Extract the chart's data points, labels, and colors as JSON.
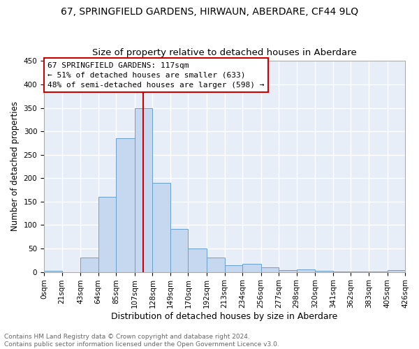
{
  "title": "67, SPRINGFIELD GARDENS, HIRWAUN, ABERDARE, CF44 9LQ",
  "subtitle": "Size of property relative to detached houses in Aberdare",
  "xlabel": "Distribution of detached houses by size in Aberdare",
  "ylabel": "Number of detached properties",
  "bin_edges": [
    0,
    21,
    43,
    64,
    85,
    107,
    128,
    149,
    170,
    192,
    213,
    234,
    256,
    277,
    298,
    320,
    341,
    362,
    383,
    405,
    426
  ],
  "bin_labels": [
    "0sqm",
    "21sqm",
    "43sqm",
    "64sqm",
    "85sqm",
    "107sqm",
    "128sqm",
    "149sqm",
    "170sqm",
    "192sqm",
    "213sqm",
    "234sqm",
    "256sqm",
    "277sqm",
    "298sqm",
    "320sqm",
    "341sqm",
    "362sqm",
    "383sqm",
    "405sqm",
    "426sqm"
  ],
  "bar_heights": [
    3,
    0,
    30,
    160,
    285,
    350,
    190,
    91,
    50,
    30,
    15,
    18,
    10,
    4,
    5,
    2,
    1,
    1,
    1,
    4
  ],
  "bar_color": "#c5d8f0",
  "bar_edge_color": "#6aa0cc",
  "vline_x": 117,
  "vline_color": "#cc0000",
  "annotation_text": "67 SPRINGFIELD GARDENS: 117sqm\n← 51% of detached houses are smaller (633)\n48% of semi-detached houses are larger (598) →",
  "annotation_box_color": "#ffffff",
  "annotation_box_edge_color": "#cc0000",
  "ylim": [
    0,
    450
  ],
  "yticks": [
    0,
    50,
    100,
    150,
    200,
    250,
    300,
    350,
    400,
    450
  ],
  "background_color": "#e8eef8",
  "grid_color": "#ffffff",
  "footer_text": "Contains HM Land Registry data © Crown copyright and database right 2024.\nContains public sector information licensed under the Open Government Licence v3.0.",
  "title_fontsize": 10,
  "subtitle_fontsize": 9.5,
  "xlabel_fontsize": 9,
  "ylabel_fontsize": 8.5,
  "tick_fontsize": 7.5,
  "annotation_fontsize": 8,
  "footer_fontsize": 6.5
}
